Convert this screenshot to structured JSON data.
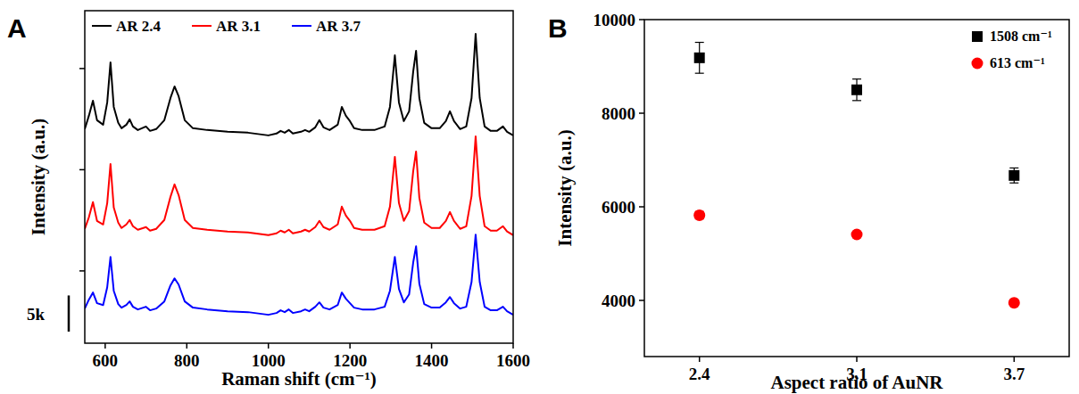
{
  "chart_data": [
    {
      "type": "line",
      "title": "A",
      "x_label": "Raman shift (cm⁻¹)",
      "y_label": "Intensity (a.u.)",
      "x": [
        550,
        560,
        570,
        580,
        595,
        605,
        613,
        621,
        632,
        640,
        652,
        660,
        668,
        680,
        700,
        710,
        725,
        745,
        760,
        770,
        780,
        795,
        815,
        850,
        900,
        950,
        1000,
        1020,
        1030,
        1040,
        1050,
        1060,
        1080,
        1090,
        1100,
        1115,
        1125,
        1135,
        1150,
        1170,
        1180,
        1190,
        1200,
        1210,
        1230,
        1260,
        1285,
        1298,
        1310,
        1320,
        1332,
        1345,
        1355,
        1362,
        1370,
        1382,
        1400,
        1420,
        1435,
        1445,
        1455,
        1470,
        1485,
        1498,
        1508,
        1518,
        1530,
        1545,
        1560,
        1575,
        1585,
        1600
      ],
      "series": [
        {
          "name": "AR 2.4",
          "color": "#000000",
          "values": [
            29620,
            31460,
            33550,
            30850,
            30230,
            33310,
            38840,
            32690,
            30480,
            29740,
            30230,
            30970,
            29980,
            29490,
            29980,
            29370,
            29620,
            30850,
            33920,
            35520,
            34170,
            30850,
            29740,
            29490,
            29250,
            29120,
            28750,
            29000,
            29370,
            29120,
            29490,
            29000,
            29250,
            29490,
            29250,
            29860,
            30850,
            29860,
            29490,
            30230,
            32690,
            31460,
            30720,
            29740,
            29490,
            29490,
            29980,
            32690,
            39820,
            33310,
            30720,
            32080,
            37610,
            40440,
            33920,
            30480,
            29740,
            29740,
            30720,
            32080,
            30720,
            29620,
            29980,
            33920,
            42780,
            33920,
            29980,
            29370,
            29370,
            29980,
            29250,
            28750
          ]
        },
        {
          "name": "AR 3.1",
          "color": "#ff0000",
          "values": [
            15820,
            17410,
            19510,
            16920,
            16430,
            19380,
            24790,
            18770,
            16680,
            15940,
            16430,
            17050,
            16180,
            15690,
            16060,
            15570,
            15820,
            17050,
            20240,
            21970,
            20490,
            17050,
            15940,
            15690,
            15450,
            15320,
            14950,
            15200,
            15570,
            15320,
            15690,
            15200,
            15450,
            15690,
            15450,
            16060,
            16920,
            16060,
            15690,
            16430,
            18890,
            17660,
            16920,
            15940,
            15690,
            15690,
            16180,
            18890,
            25780,
            19380,
            16920,
            18280,
            23810,
            26520,
            20120,
            16680,
            15940,
            15940,
            16920,
            18150,
            16920,
            15820,
            16180,
            20370,
            28610,
            20370,
            16180,
            15570,
            15570,
            16180,
            15450,
            14950
          ]
        },
        {
          "name": "AR 3.7",
          "color": "#0000ff",
          "values": [
            4790,
            6020,
            7010,
            5530,
            5280,
            7740,
            11930,
            7250,
            5410,
            4920,
            5280,
            5780,
            5040,
            4670,
            5040,
            4550,
            4790,
            5780,
            7990,
            8970,
            8110,
            5780,
            4920,
            4670,
            4420,
            4300,
            3930,
            4180,
            4550,
            4300,
            4670,
            4180,
            4420,
            4670,
            4420,
            5040,
            5650,
            4920,
            4670,
            5280,
            7010,
            6150,
            5530,
            4920,
            4670,
            4670,
            5040,
            7250,
            11930,
            7500,
            5650,
            6760,
            11190,
            13400,
            8240,
            5410,
            4920,
            4920,
            5650,
            6390,
            5530,
            4790,
            5040,
            8480,
            15000,
            8480,
            5040,
            4550,
            4550,
            5040,
            4420,
            3930
          ]
        }
      ],
      "xlim": [
        550,
        1600
      ],
      "xticks": [
        600,
        800,
        1000,
        1200,
        1400,
        1600
      ],
      "ylim": [
        0,
        46000
      ],
      "yticks": [
        10000,
        24000,
        38000
      ],
      "tick_labels": "x",
      "legend": "top",
      "annotations": [
        {
          "text": "5k",
          "value": 5000
        }
      ]
    },
    {
      "type": "scatter",
      "title": "B",
      "x_label": "Aspect ratio of AuNR",
      "y_label": "Intensity (a.u.)",
      "categories": [
        "2.4",
        "3.1",
        "3.7"
      ],
      "series": [
        {
          "name": "1508 cm⁻¹",
          "color": "#000000",
          "marker": "square",
          "values": [
            9184,
            8500,
            6670
          ],
          "errors": [
            330,
            230,
            160
          ]
        },
        {
          "name": "613 cm⁻¹",
          "color": "#ff0000",
          "marker": "circle",
          "values": [
            5820,
            5410,
            3950
          ],
          "errors": [
            80,
            60,
            40
          ]
        }
      ],
      "ylim": [
        2800,
        10000
      ],
      "yticks": [
        4000,
        6000,
        8000,
        10000
      ],
      "legend": "top-right"
    }
  ]
}
